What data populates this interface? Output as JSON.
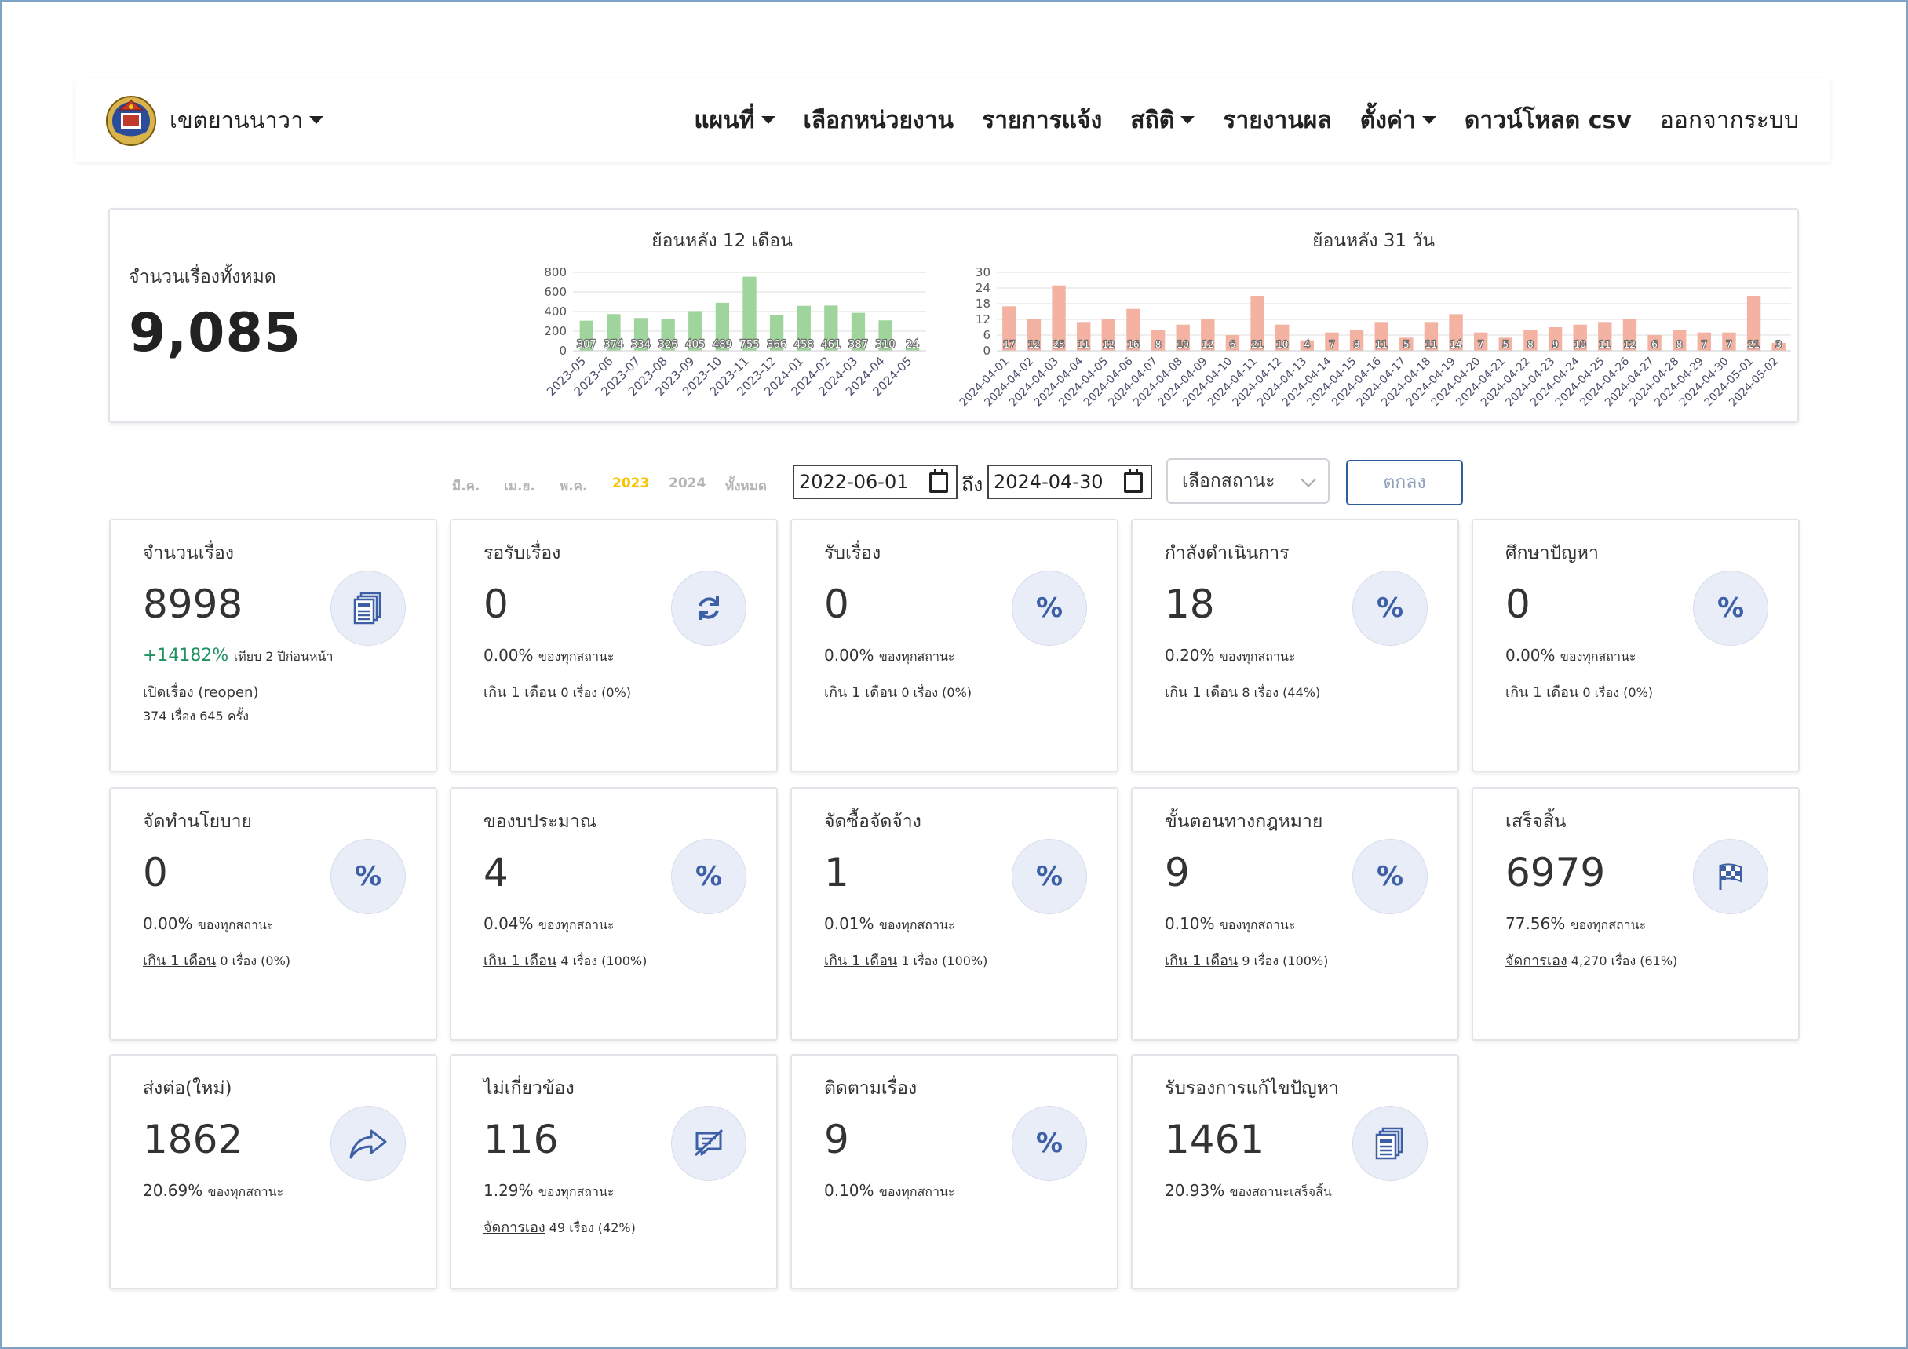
{
  "navbar": {
    "brand": "เขตยานนาวา",
    "items": [
      {
        "label": "แผนที่",
        "dropdown": true
      },
      {
        "label": "เลือกหน่วยงาน",
        "dropdown": false
      },
      {
        "label": "รายการแจ้ง",
        "dropdown": false
      },
      {
        "label": "สถิติ",
        "dropdown": true
      },
      {
        "label": "รายงานผล",
        "dropdown": false
      },
      {
        "label": "ตั้งค่า",
        "dropdown": true
      },
      {
        "label": "ดาวน์โหลด csv",
        "dropdown": false
      },
      {
        "label": "ออกจากระบบ",
        "dropdown": false
      }
    ]
  },
  "summary": {
    "label": "จำนวนเรื่องทั้งหมด",
    "total": "9,085"
  },
  "chart_data": [
    {
      "type": "bar",
      "title": "ย้อนหลัง 12 เดือน",
      "categories": [
        "2023-05",
        "2023-06",
        "2023-07",
        "2023-08",
        "2023-09",
        "2023-10",
        "2023-11",
        "2023-12",
        "2024-01",
        "2024-02",
        "2024-03",
        "2024-04",
        "2024-05"
      ],
      "values": [
        307,
        374,
        334,
        326,
        405,
        489,
        755,
        366,
        458,
        461,
        387,
        310,
        24
      ],
      "ylim": [
        0,
        800
      ],
      "yticks": [
        0,
        200,
        400,
        600,
        800
      ],
      "color": "#9fd49c"
    },
    {
      "type": "bar",
      "title": "ย้อนหลัง 31 วัน",
      "categories": [
        "2024-04-01",
        "2024-04-02",
        "2024-04-03",
        "2024-04-04",
        "2024-04-05",
        "2024-04-06",
        "2024-04-07",
        "2024-04-08",
        "2024-04-09",
        "2024-04-10",
        "2024-04-11",
        "2024-04-12",
        "2024-04-13",
        "2024-04-14",
        "2024-04-15",
        "2024-04-16",
        "2024-04-17",
        "2024-04-18",
        "2024-04-19",
        "2024-04-20",
        "2024-04-21",
        "2024-04-22",
        "2024-04-23",
        "2024-04-24",
        "2024-04-25",
        "2024-04-26",
        "2024-04-27",
        "2024-04-28",
        "2024-04-29",
        "2024-04-30",
        "2024-05-01",
        "2024-05-02"
      ],
      "values": [
        17,
        12,
        25,
        11,
        12,
        16,
        8,
        10,
        12,
        6,
        21,
        10,
        4,
        7,
        8,
        11,
        5,
        11,
        14,
        7,
        5,
        8,
        9,
        10,
        11,
        12,
        6,
        8,
        7,
        7,
        21,
        3
      ],
      "ylim": [
        0,
        30
      ],
      "yticks": [
        0,
        6,
        12,
        18,
        24,
        30
      ],
      "color": "#f4b3a2"
    }
  ],
  "filters": {
    "tabs": [
      "มี.ค.",
      "เม.ย.",
      "พ.ค.",
      "2023",
      "2024",
      "ทั้งหมด"
    ],
    "active_tab": "2023",
    "date_from": "2022-06-01",
    "to_label": "ถึง",
    "date_to": "2024-04-30",
    "status_placeholder": "เลือกสถานะ",
    "submit_label": "ตกลง"
  },
  "cards": [
    {
      "title": "จำนวนเรื่อง",
      "value": "8998",
      "icon": "documents-icon",
      "line1_green": "+14182%",
      "line1_text": "เทียบ 2 ปีก่อนหน้า",
      "link": "เปิดเรื่อง (reopen)",
      "line2_text": "",
      "line3": "374 เรื่อง 645 ครั้ง"
    },
    {
      "title": "รอรับเรื่อง",
      "value": "0",
      "icon": "refresh-icon",
      "pct": "0.00%",
      "pct_label": "ของทุกสถานะ",
      "link": "เกิน 1 เดือน",
      "line2_text": "0 เรื่อง (0%)"
    },
    {
      "title": "รับเรื่อง",
      "value": "0",
      "icon": "percent-icon",
      "pct": "0.00%",
      "pct_label": "ของทุกสถานะ",
      "link": "เกิน 1 เดือน",
      "line2_text": "0 เรื่อง (0%)"
    },
    {
      "title": "กำลังดำเนินการ",
      "value": "18",
      "icon": "percent-icon",
      "pct": "0.20%",
      "pct_label": "ของทุกสถานะ",
      "link": "เกิน 1 เดือน",
      "line2_text": "8 เรื่อง (44%)"
    },
    {
      "title": "ศึกษาปัญหา",
      "value": "0",
      "icon": "percent-icon",
      "pct": "0.00%",
      "pct_label": "ของทุกสถานะ",
      "link": "เกิน 1 เดือน",
      "line2_text": "0 เรื่อง (0%)"
    },
    {
      "title": "จัดทำนโยบาย",
      "value": "0",
      "icon": "percent-icon",
      "pct": "0.00%",
      "pct_label": "ของทุกสถานะ",
      "link": "เกิน 1 เดือน",
      "line2_text": "0 เรื่อง (0%)"
    },
    {
      "title": "ของบประมาณ",
      "value": "4",
      "icon": "percent-icon",
      "pct": "0.04%",
      "pct_label": "ของทุกสถานะ",
      "link": "เกิน 1 เดือน",
      "line2_text": "4 เรื่อง (100%)"
    },
    {
      "title": "จัดซื้อจัดจ้าง",
      "value": "1",
      "icon": "percent-icon",
      "pct": "0.01%",
      "pct_label": "ของทุกสถานะ",
      "link": "เกิน 1 เดือน",
      "line2_text": "1 เรื่อง (100%)"
    },
    {
      "title": "ขั้นตอนทางกฎหมาย",
      "value": "9",
      "icon": "percent-icon",
      "pct": "0.10%",
      "pct_label": "ของทุกสถานะ",
      "link": "เกิน 1 เดือน",
      "line2_text": "9 เรื่อง (100%)"
    },
    {
      "title": "เสร็จสิ้น",
      "value": "6979",
      "icon": "checkered-flag-icon",
      "pct": "77.56%",
      "pct_label": "ของทุกสถานะ",
      "link": "จัดการเอง",
      "line2_text": "4,270 เรื่อง (61%)"
    },
    {
      "title": "ส่งต่อ(ใหม่)",
      "value": "1862",
      "icon": "forward-share-icon",
      "pct": "20.69%",
      "pct_label": "ของทุกสถานะ"
    },
    {
      "title": "ไม่เกี่ยวข้อง",
      "value": "116",
      "icon": "comment-slash-icon",
      "pct": "1.29%",
      "pct_label": "ของทุกสถานะ",
      "link": "จัดการเอง",
      "line2_text": "49 เรื่อง (42%)"
    },
    {
      "title": "ติดตามเรื่อง",
      "value": "9",
      "icon": "percent-icon",
      "pct": "0.10%",
      "pct_label": "ของทุกสถานะ"
    },
    {
      "title": "รับรองการแก้ไขปัญหา",
      "value": "1461",
      "icon": "documents-icon",
      "pct": "20.93%",
      "pct_label": "ของสถานะเสร็จสิ้น"
    }
  ],
  "colors": {
    "accent": "#3d5fa6",
    "icon_bg": "#e9edf7",
    "positive": "#22915f",
    "active_tab": "#f6c400",
    "month_bar": "#9fd49c",
    "day_bar": "#f4b3a2"
  }
}
